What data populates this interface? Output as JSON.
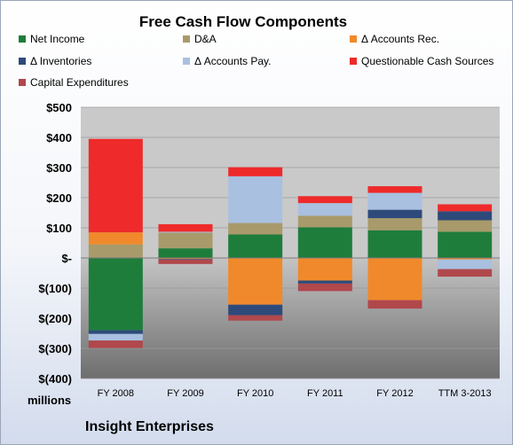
{
  "chart_data": {
    "type": "bar",
    "stacked": true,
    "title": "Free Cash Flow Components",
    "unit_label": "millions",
    "footer": "Insight Enterprises",
    "categories": [
      "FY 2008",
      "FY 2009",
      "FY 2010",
      "FY 2011",
      "FY 2012",
      "TTM 3-2013"
    ],
    "ylim": [
      -400,
      500
    ],
    "yticks": [
      500,
      400,
      300,
      200,
      100,
      0,
      -100,
      -200,
      -300,
      -400
    ],
    "ytick_labels": [
      "$500",
      "$400",
      "$300",
      "$200",
      "$100",
      "$-",
      "$(100)",
      "$(200)",
      "$(300)",
      "$(400)"
    ],
    "grid": true,
    "legend_position": "top",
    "series": [
      {
        "name": "Net Income",
        "color": "#1f7d3c",
        "values": [
          -240,
          32,
          78,
          102,
          92,
          87
        ]
      },
      {
        "name": "D&A",
        "color": "#a89a6a",
        "values": [
          45,
          52,
          38,
          38,
          40,
          38
        ]
      },
      {
        "name": "Δ Accounts Rec.",
        "color": "#f0892b",
        "values": [
          40,
          -3,
          -155,
          -75,
          -140,
          -5
        ]
      },
      {
        "name": "Δ Inventories",
        "color": "#2e4a7a",
        "values": [
          -12,
          -2,
          -35,
          -10,
          28,
          30
        ]
      },
      {
        "name": "Δ Accounts Pay.",
        "color": "#a9c0e0",
        "values": [
          -22,
          3,
          155,
          42,
          56,
          -32
        ]
      },
      {
        "name": "Questionable Cash Sources",
        "color": "#ee2a2a",
        "values": [
          310,
          25,
          30,
          23,
          22,
          23
        ]
      },
      {
        "name": "Capital Expenditures",
        "color": "#b0484c",
        "values": [
          -25,
          -15,
          -18,
          -25,
          -28,
          -25
        ]
      }
    ]
  }
}
